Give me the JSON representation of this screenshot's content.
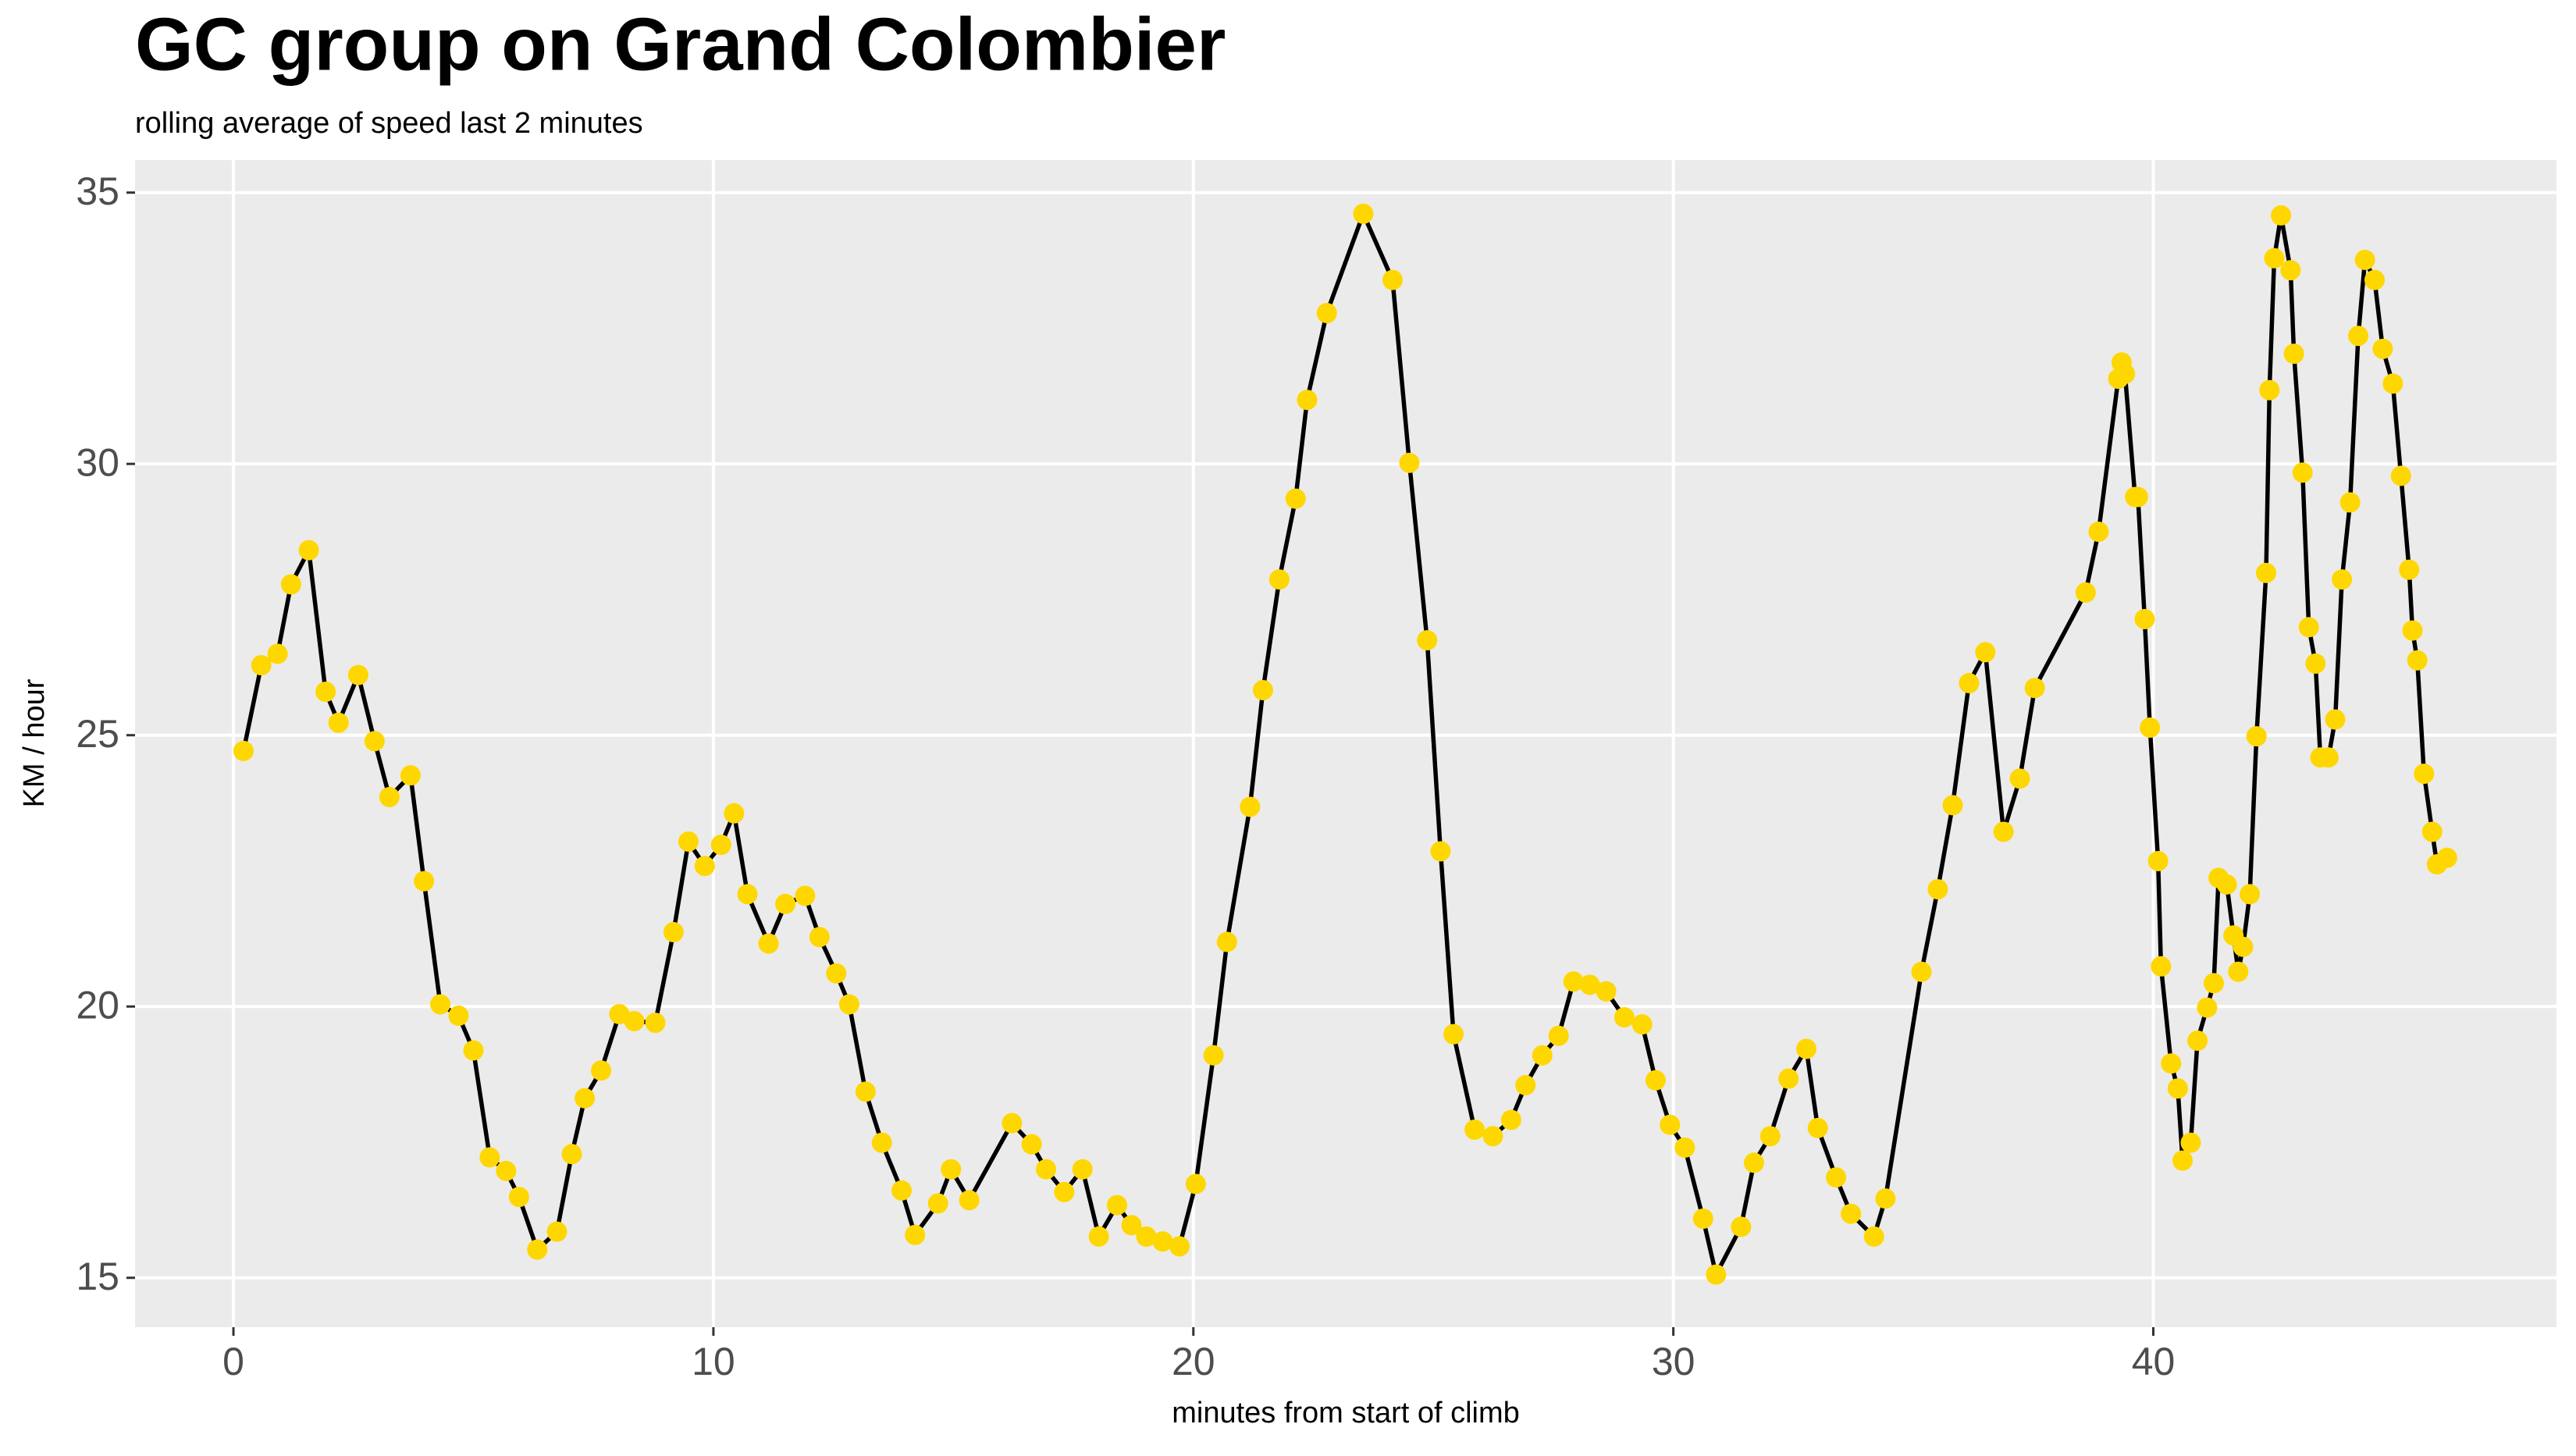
{
  "chart_data": {
    "type": "line",
    "title": "GC group on Grand Colombier",
    "subtitle": "rolling average of speed last 2 minutes",
    "x_label": "minutes from start of climb",
    "y_label": "KM / hour",
    "x": [
      0.21,
      0.58,
      0.92,
      1.2,
      1.57,
      1.92,
      2.19,
      2.6,
      2.94,
      3.25,
      3.69,
      3.97,
      4.31,
      4.69,
      5.0,
      5.34,
      5.68,
      5.95,
      6.33,
      6.74,
      7.05,
      7.32,
      7.66,
      8.04,
      8.35,
      8.79,
      9.17,
      9.48,
      9.82,
      10.16,
      10.43,
      10.71,
      11.15,
      11.5,
      11.91,
      12.21,
      12.56,
      12.83,
      13.17,
      13.51,
      13.92,
      14.2,
      14.68,
      14.95,
      15.33,
      16.22,
      16.63,
      16.93,
      17.31,
      17.69,
      18.03,
      18.41,
      18.71,
      19.02,
      19.36,
      19.71,
      20.05,
      20.42,
      20.7,
      21.18,
      21.45,
      21.79,
      22.13,
      22.37,
      22.78,
      23.54,
      24.15,
      24.5,
      24.87,
      25.15,
      25.42,
      25.86,
      26.24,
      26.62,
      26.92,
      27.27,
      27.61,
      27.92,
      28.26,
      28.6,
      28.98,
      29.35,
      29.63,
      29.93,
      30.24,
      30.62,
      30.89,
      31.41,
      31.68,
      32.02,
      32.4,
      32.77,
      33.01,
      33.39,
      33.7,
      34.18,
      34.42,
      35.17,
      35.51,
      35.82,
      36.16,
      36.5,
      36.88,
      37.22,
      37.53,
      38.59,
      38.86,
      39.27,
      39.34,
      39.41,
      39.62,
      39.68,
      39.82,
      39.93,
      40.1,
      40.16,
      40.37,
      40.51,
      40.61,
      40.78,
      40.92,
      41.12,
      41.26,
      41.36,
      41.53,
      41.67,
      41.77,
      41.87,
      42.01,
      42.15,
      42.35,
      42.42,
      42.52,
      42.66,
      42.86,
      42.93,
      43.11,
      43.24,
      43.38,
      43.48,
      43.65,
      43.79,
      43.93,
      44.1,
      44.27,
      44.41,
      44.61,
      44.78,
      44.99,
      45.16,
      45.33,
      45.4,
      45.5,
      45.64,
      45.81,
      45.91,
      46.12
    ],
    "values": [
      24.71,
      26.29,
      26.5,
      27.78,
      28.41,
      25.8,
      25.23,
      26.11,
      24.89,
      23.86,
      24.26,
      22.31,
      20.04,
      19.83,
      19.19,
      17.22,
      16.97,
      16.49,
      15.52,
      15.85,
      17.28,
      18.31,
      18.82,
      19.86,
      19.73,
      19.7,
      21.37,
      23.04,
      22.59,
      22.98,
      23.56,
      22.07,
      21.16,
      21.89,
      22.04,
      21.28,
      20.61,
      20.04,
      18.43,
      17.49,
      16.61,
      15.79,
      16.37,
      17.0,
      16.43,
      17.85,
      17.46,
      17.0,
      16.58,
      17.0,
      15.76,
      16.34,
      15.97,
      15.76,
      15.67,
      15.58,
      16.73,
      19.1,
      21.19,
      23.68,
      25.83,
      27.87,
      29.36,
      31.18,
      32.78,
      34.61,
      33.39,
      30.02,
      26.75,
      22.86,
      19.49,
      17.73,
      17.61,
      17.91,
      18.55,
      19.1,
      19.46,
      20.46,
      20.4,
      20.28,
      19.8,
      19.67,
      18.64,
      17.82,
      17.4,
      16.09,
      15.06,
      15.94,
      17.12,
      17.61,
      18.67,
      19.22,
      17.76,
      16.85,
      16.18,
      15.76,
      16.46,
      20.64,
      22.16,
      23.71,
      25.96,
      26.53,
      23.22,
      24.2,
      25.87,
      27.63,
      28.75,
      31.57,
      31.87,
      31.66,
      29.39,
      29.39,
      27.14,
      25.14,
      22.68,
      20.74,
      18.95,
      18.49,
      17.16,
      17.49,
      19.37,
      19.98,
      20.43,
      22.37,
      22.25,
      21.31,
      20.64,
      21.1,
      22.07,
      24.98,
      27.99,
      31.36,
      33.79,
      34.58,
      33.57,
      32.03,
      29.84,
      26.99,
      26.32,
      24.59,
      24.59,
      25.29,
      27.87,
      29.29,
      32.36,
      33.76,
      33.39,
      32.12,
      31.48,
      29.78,
      28.05,
      26.93,
      26.38,
      24.29,
      23.22,
      22.62,
      22.74
    ],
    "color": "#FFD700",
    "line_color": "#000000",
    "xlim": [
      -2.05,
      48.4
    ],
    "ylim": [
      14.09,
      35.6
    ],
    "xticks": [
      0,
      10,
      20,
      30,
      40
    ],
    "yticks": [
      15,
      20,
      25,
      30,
      35
    ],
    "grid": true
  }
}
